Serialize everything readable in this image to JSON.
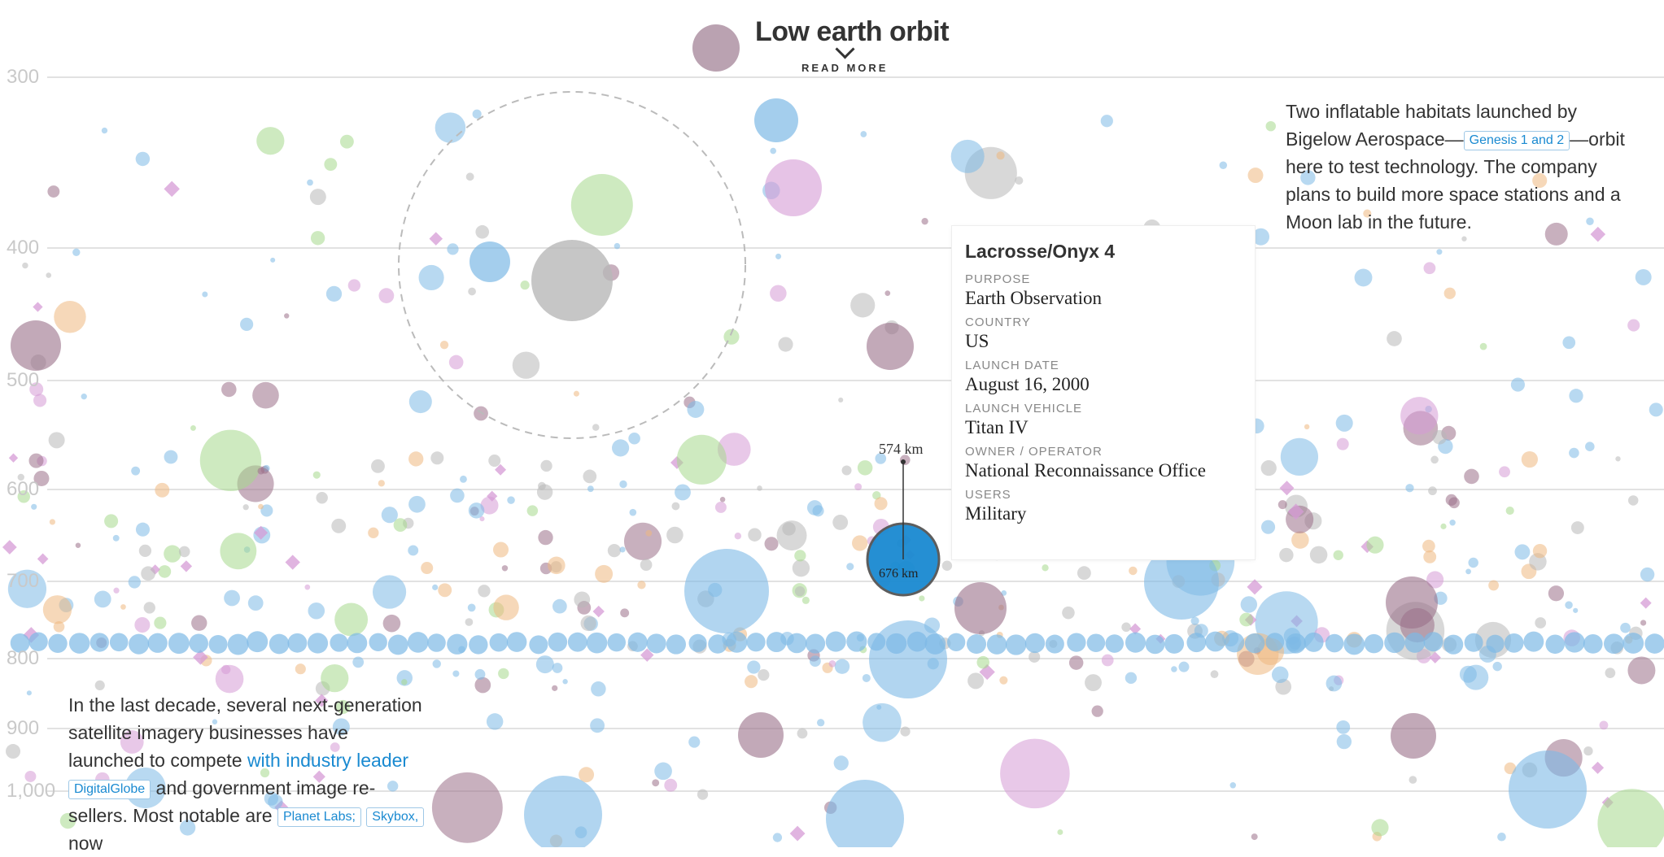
{
  "header": {
    "title": "Low earth orbit",
    "read_more": "READ MORE",
    "chevron_icon": "chevron-down-icon"
  },
  "axis": {
    "ticks": [
      "300",
      "400",
      "500",
      "600",
      "700",
      "800",
      "900",
      "1,000"
    ]
  },
  "annotations": {
    "top_right": {
      "pre": "Two inflatable habitats launched by Bigelow Aerospace—",
      "tag": "Genesis 1 and 2",
      "post": "—orbit here to test technology. The company plans to build more space stations and a Moon lab in the future."
    },
    "bottom_left": {
      "pre": "In the last decade, several next-generation satellite imagery businesses have launched to compete ",
      "link": "with industry leader",
      "tag1": "DigitalGlobe",
      "mid": " and government image re-sellers. Most notable are ",
      "tag2": "Planet Labs;",
      "tag3": "Skybox,",
      "post": " now"
    }
  },
  "tooltip": {
    "name": "Lacrosse/Onyx 4",
    "purpose_label": "PURPOSE",
    "purpose": "Earth Observation",
    "country_label": "COUNTRY",
    "country": "US",
    "launch_date_label": "LAUNCH DATE",
    "launch_date": "August 16, 2000",
    "launch_vehicle_label": "LAUNCH VEHICLE",
    "launch_vehicle": "Titan IV",
    "owner_label": "OWNER / OPERATOR",
    "owner": "National Reconnaissance Office",
    "users_label": "USERS",
    "users": "Military"
  },
  "selected": {
    "apogee_label": "574 km",
    "perigee_label": "676 km"
  },
  "colors": {
    "communications": "#7db9e6",
    "earth_observation": "#d59bd6",
    "unknown": "#b8b8b8",
    "navigation": "#eeb880",
    "science": "#a6d98c",
    "military": "#9a7088",
    "selected": "#1a8ad1"
  }
}
